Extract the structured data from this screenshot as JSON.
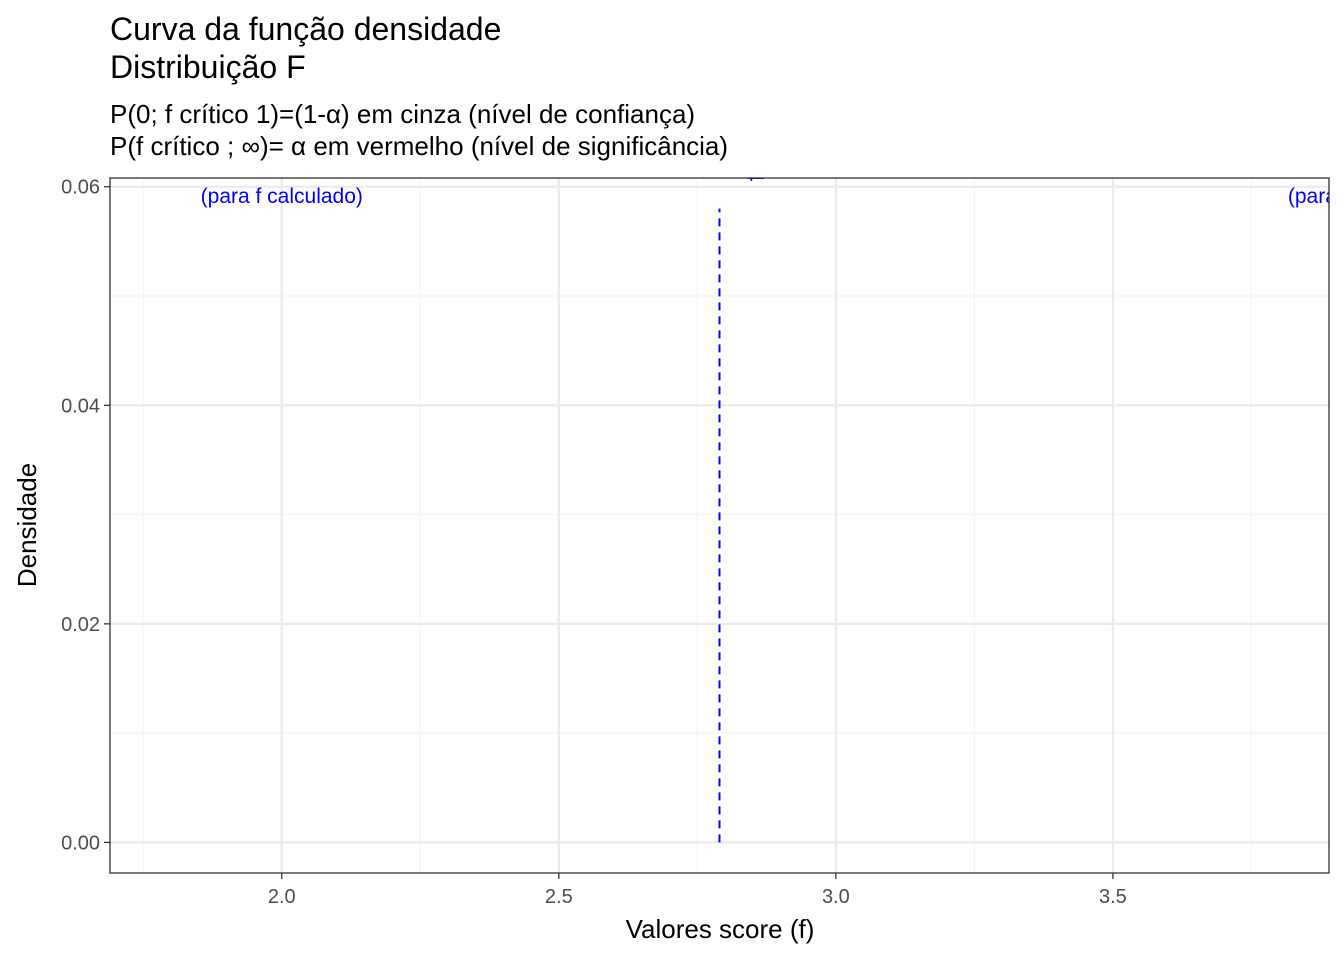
{
  "chart_data": {
    "type": "line",
    "title": [
      "Curva da função densidade",
      "Distribuição F"
    ],
    "subtitle": [
      "P(0; f crítico 1)=(1-α) em cinza (nível de confiança)",
      "P(f crítico ; ∞)= α em vermelho (nível de significância)"
    ],
    "xlabel": "Valores score (f)",
    "ylabel": "Densidade",
    "xlim": [
      1.69,
      3.89
    ],
    "ylim": [
      -0.0028,
      0.0608
    ],
    "x_ticks": [
      2.0,
      2.5,
      3.0,
      3.5
    ],
    "x_tick_labels": [
      "2.0",
      "2.5",
      "3.0",
      "3.5"
    ],
    "y_ticks": [
      0.0,
      0.02,
      0.04,
      0.06
    ],
    "y_tick_labels": [
      "0.00",
      "0.02",
      "0.04",
      "0.06"
    ],
    "x_minor_ticks": [
      1.75,
      2.25,
      2.75,
      3.25,
      3.75
    ],
    "y_minor_ticks": [
      0.01,
      0.03,
      0.05
    ],
    "grid": true,
    "theme": "bw",
    "vlines": [
      {
        "x": 2.79,
        "y_from": 0.0,
        "y_to": 0.058,
        "style": "dashed",
        "color": "#0000ff"
      }
    ],
    "annotations": [
      {
        "text": "(para f calculado)",
        "x": 2.0,
        "y": 0.0585,
        "color": "#0000ff"
      },
      {
        "text": "(para",
        "x": 3.86,
        "y": 0.0585,
        "color": "#0000ff"
      },
      {
        "text": "f c",
        "x": 2.87,
        "y": 0.0605,
        "rotate": -90,
        "color": "#0000ff"
      }
    ],
    "colors": {
      "panel_border": "#333333",
      "grid_major": "#ebebeb",
      "grid_minor": "#f4f4f4",
      "annotation": "#0000ff"
    }
  }
}
